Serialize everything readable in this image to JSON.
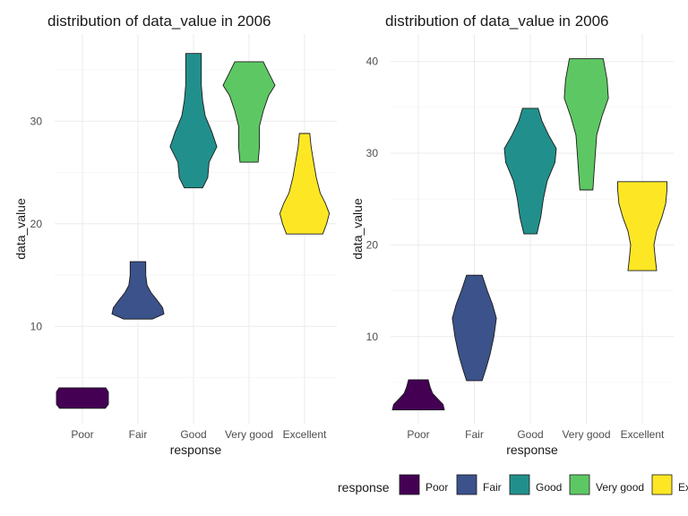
{
  "colors": {
    "Poor": "#440154",
    "Fair": "#3B528B",
    "Good": "#21908C",
    "Very good": "#5DC863",
    "Excellent": "#FDE725"
  },
  "legend": {
    "title": "response",
    "items": [
      "Poor",
      "Fair",
      "Good",
      "Very good",
      "Excellent"
    ]
  },
  "chart_data": [
    {
      "type": "violin",
      "title": "distribution of data_value in 2006",
      "xlabel": "response",
      "ylabel": "data_value",
      "categories": [
        "Poor",
        "Fair",
        "Good",
        "Very good",
        "Excellent"
      ],
      "yticks": [
        10,
        20,
        30
      ],
      "ylim": [
        0.5,
        38.5
      ],
      "grid": true,
      "series": [
        {
          "category": "Poor",
          "min": 2.0,
          "max": 4.0,
          "profile": [
            [
              2.0,
              0.88
            ],
            [
              2.4,
              1.0
            ],
            [
              3.0,
              1.0
            ],
            [
              3.6,
              1.0
            ],
            [
              4.0,
              0.9
            ]
          ]
        },
        {
          "category": "Fair",
          "min": 10.7,
          "max": 16.3,
          "profile": [
            [
              10.7,
              0.55
            ],
            [
              11.2,
              1.0
            ],
            [
              11.8,
              0.95
            ],
            [
              12.5,
              0.75
            ],
            [
              13.3,
              0.5
            ],
            [
              14.0,
              0.35
            ],
            [
              15.0,
              0.3
            ],
            [
              16.3,
              0.3
            ]
          ]
        },
        {
          "category": "Good",
          "min": 23.5,
          "max": 36.6,
          "profile": [
            [
              23.5,
              0.35
            ],
            [
              24.5,
              0.55
            ],
            [
              26.0,
              0.6
            ],
            [
              27.5,
              0.9
            ],
            [
              29.0,
              0.7
            ],
            [
              30.5,
              0.45
            ],
            [
              32.0,
              0.35
            ],
            [
              33.5,
              0.3
            ],
            [
              35.0,
              0.3
            ],
            [
              36.6,
              0.3
            ]
          ]
        },
        {
          "category": "Very good",
          "min": 26.0,
          "max": 35.8,
          "profile": [
            [
              26.0,
              0.35
            ],
            [
              27.5,
              0.4
            ],
            [
              29.5,
              0.4
            ],
            [
              31.0,
              0.55
            ],
            [
              32.5,
              0.75
            ],
            [
              33.5,
              1.0
            ],
            [
              34.5,
              0.8
            ],
            [
              35.8,
              0.55
            ]
          ]
        },
        {
          "category": "Excellent",
          "min": 19.0,
          "max": 28.8,
          "profile": [
            [
              19.0,
              0.7
            ],
            [
              20.0,
              0.85
            ],
            [
              21.0,
              0.95
            ],
            [
              22.0,
              0.8
            ],
            [
              23.0,
              0.6
            ],
            [
              24.5,
              0.45
            ],
            [
              26.0,
              0.35
            ],
            [
              27.5,
              0.25
            ],
            [
              28.8,
              0.2
            ]
          ]
        }
      ]
    },
    {
      "type": "violin",
      "title": "distribution of data_value in 2006",
      "xlabel": "response",
      "ylabel": "data_value",
      "categories": [
        "Poor",
        "Fair",
        "Good",
        "Very good",
        "Excellent"
      ],
      "yticks": [
        10,
        20,
        30,
        40
      ],
      "ylim": [
        0.5,
        43.0
      ],
      "grid": true,
      "series": [
        {
          "category": "Poor",
          "min": 2.0,
          "max": 5.3,
          "profile": [
            [
              2.0,
              1.0
            ],
            [
              2.6,
              0.95
            ],
            [
              3.2,
              0.75
            ],
            [
              3.8,
              0.55
            ],
            [
              4.5,
              0.45
            ],
            [
              5.3,
              0.38
            ]
          ]
        },
        {
          "category": "Fair",
          "min": 5.2,
          "max": 16.7,
          "profile": [
            [
              5.2,
              0.3
            ],
            [
              6.5,
              0.45
            ],
            [
              8.0,
              0.6
            ],
            [
              10.0,
              0.75
            ],
            [
              12.0,
              0.85
            ],
            [
              13.5,
              0.7
            ],
            [
              15.0,
              0.5
            ],
            [
              16.7,
              0.3
            ]
          ]
        },
        {
          "category": "Good",
          "min": 21.2,
          "max": 34.9,
          "profile": [
            [
              21.2,
              0.25
            ],
            [
              23.0,
              0.4
            ],
            [
              25.0,
              0.5
            ],
            [
              27.0,
              0.65
            ],
            [
              29.0,
              0.95
            ],
            [
              30.5,
              1.0
            ],
            [
              32.0,
              0.7
            ],
            [
              33.5,
              0.45
            ],
            [
              34.9,
              0.3
            ]
          ]
        },
        {
          "category": "Very good",
          "min": 26.0,
          "max": 40.3,
          "profile": [
            [
              26.0,
              0.25
            ],
            [
              28.0,
              0.3
            ],
            [
              30.0,
              0.35
            ],
            [
              32.0,
              0.4
            ],
            [
              34.0,
              0.6
            ],
            [
              36.0,
              0.85
            ],
            [
              38.0,
              0.8
            ],
            [
              40.3,
              0.65
            ]
          ]
        },
        {
          "category": "Excellent",
          "min": 17.2,
          "max": 26.9,
          "profile": [
            [
              17.2,
              0.55
            ],
            [
              18.5,
              0.5
            ],
            [
              20.0,
              0.45
            ],
            [
              21.5,
              0.55
            ],
            [
              23.0,
              0.75
            ],
            [
              24.5,
              0.9
            ],
            [
              26.0,
              0.95
            ],
            [
              26.9,
              0.95
            ]
          ]
        }
      ]
    }
  ]
}
